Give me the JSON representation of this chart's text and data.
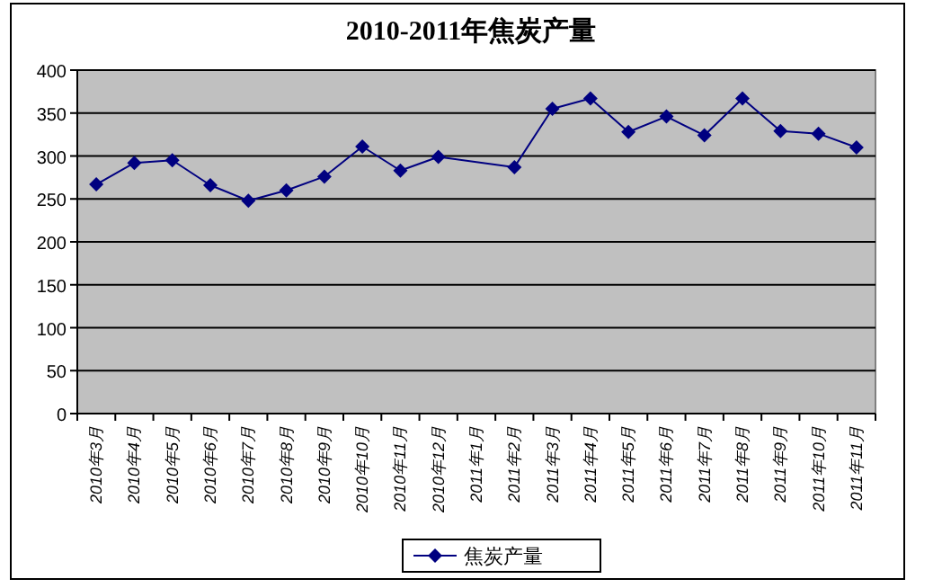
{
  "chart_data": {
    "type": "line",
    "title": "2010-2011年焦炭产量",
    "categories": [
      "2010年3月",
      "2010年4月",
      "2010年5月",
      "2010年6月",
      "2010年7月",
      "2010年8月",
      "2010年9月",
      "2010年10月",
      "2010年11月",
      "2010年12月",
      "2011年1月",
      "2011年2月",
      "2011年3月",
      "2011年4月",
      "2011年5月",
      "2011年6月",
      "2011年7月",
      "2011年8月",
      "2011年9月",
      "2011年10月",
      "2011年11月"
    ],
    "series": [
      {
        "name": "焦炭产量",
        "color": "#000080",
        "values": [
          267,
          292,
          295,
          266,
          248,
          260,
          276,
          311,
          283,
          299,
          null,
          287,
          355,
          367,
          328,
          346,
          324,
          367,
          329,
          326,
          310
        ]
      }
    ],
    "ylim": [
      0,
      400
    ],
    "yticks": [
      0,
      50,
      100,
      150,
      200,
      250,
      300,
      350,
      400
    ],
    "grid": "y",
    "legend": "bottom",
    "marker": "diamond",
    "line_style": "solid"
  }
}
